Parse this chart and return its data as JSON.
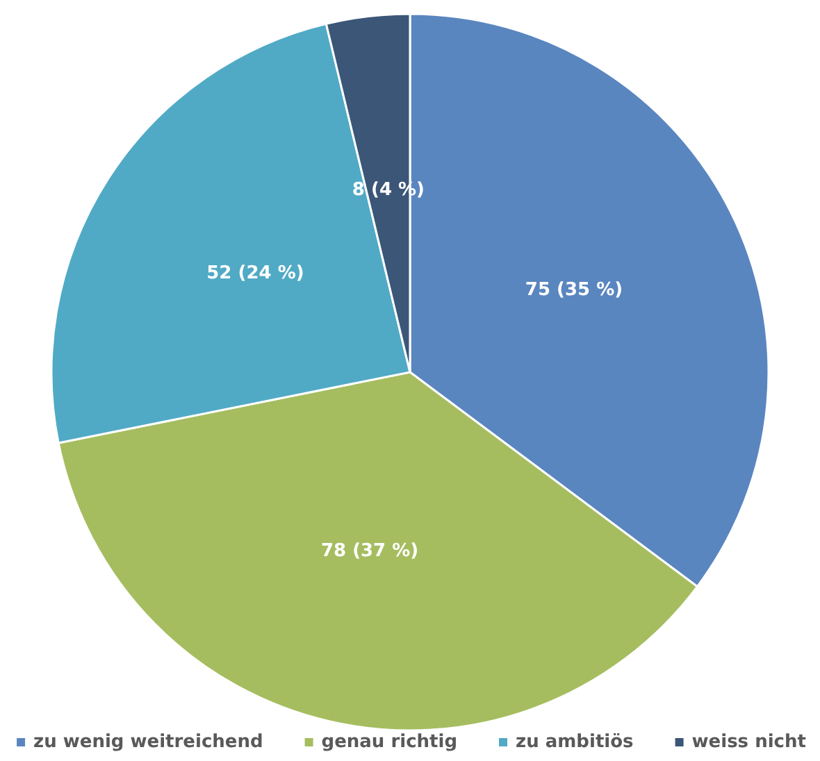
{
  "chart_data": {
    "type": "pie",
    "categories": [
      "zu wenig weitreichend",
      "genau richtig",
      "zu ambitiös",
      "weiss nicht"
    ],
    "values": [
      75,
      78,
      52,
      8
    ],
    "value_labels": [
      "75 (35 %)",
      "78 (37 %)",
      "52 (24 %)",
      "8 (4 %)"
    ],
    "colors": [
      "#5a86c0",
      "#a5bd5f",
      "#50aac5",
      "#3b5677"
    ],
    "legend": "bottom"
  }
}
